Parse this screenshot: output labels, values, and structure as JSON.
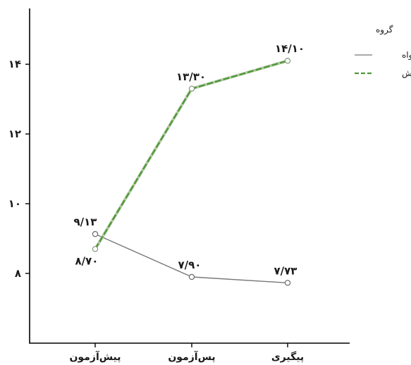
{
  "chart_data": {
    "type": "line",
    "categories": [
      "پیش‌آزمون",
      "پس‌آزمون",
      "پیگیری"
    ],
    "series": [
      {
        "name": "گواه",
        "values": [
          9.13,
          7.9,
          7.73
        ],
        "value_labels": [
          "۹/۱۳",
          "۷/۹۰",
          "۷/۷۳"
        ],
        "color": "#777777",
        "dash": "solid",
        "marker": "open-circle"
      },
      {
        "name": "آزمایش",
        "values": [
          8.7,
          13.3,
          14.1
        ],
        "value_labels": [
          "۸/۷۰",
          "۱۳/۳۰",
          "۱۴/۱۰"
        ],
        "color": "#4e9a3a",
        "dash": "dashed",
        "marker": "open-circle"
      }
    ],
    "yticks": [
      8,
      10,
      12,
      14
    ],
    "ytick_labels": [
      "۸",
      "۱۰",
      "۱۲",
      "۱۴"
    ],
    "ylim": [
      6.0,
      15.6
    ],
    "legend": {
      "title": "گروه",
      "position": "top-right"
    },
    "grid": false,
    "title": "",
    "xlabel": "",
    "ylabel": ""
  }
}
